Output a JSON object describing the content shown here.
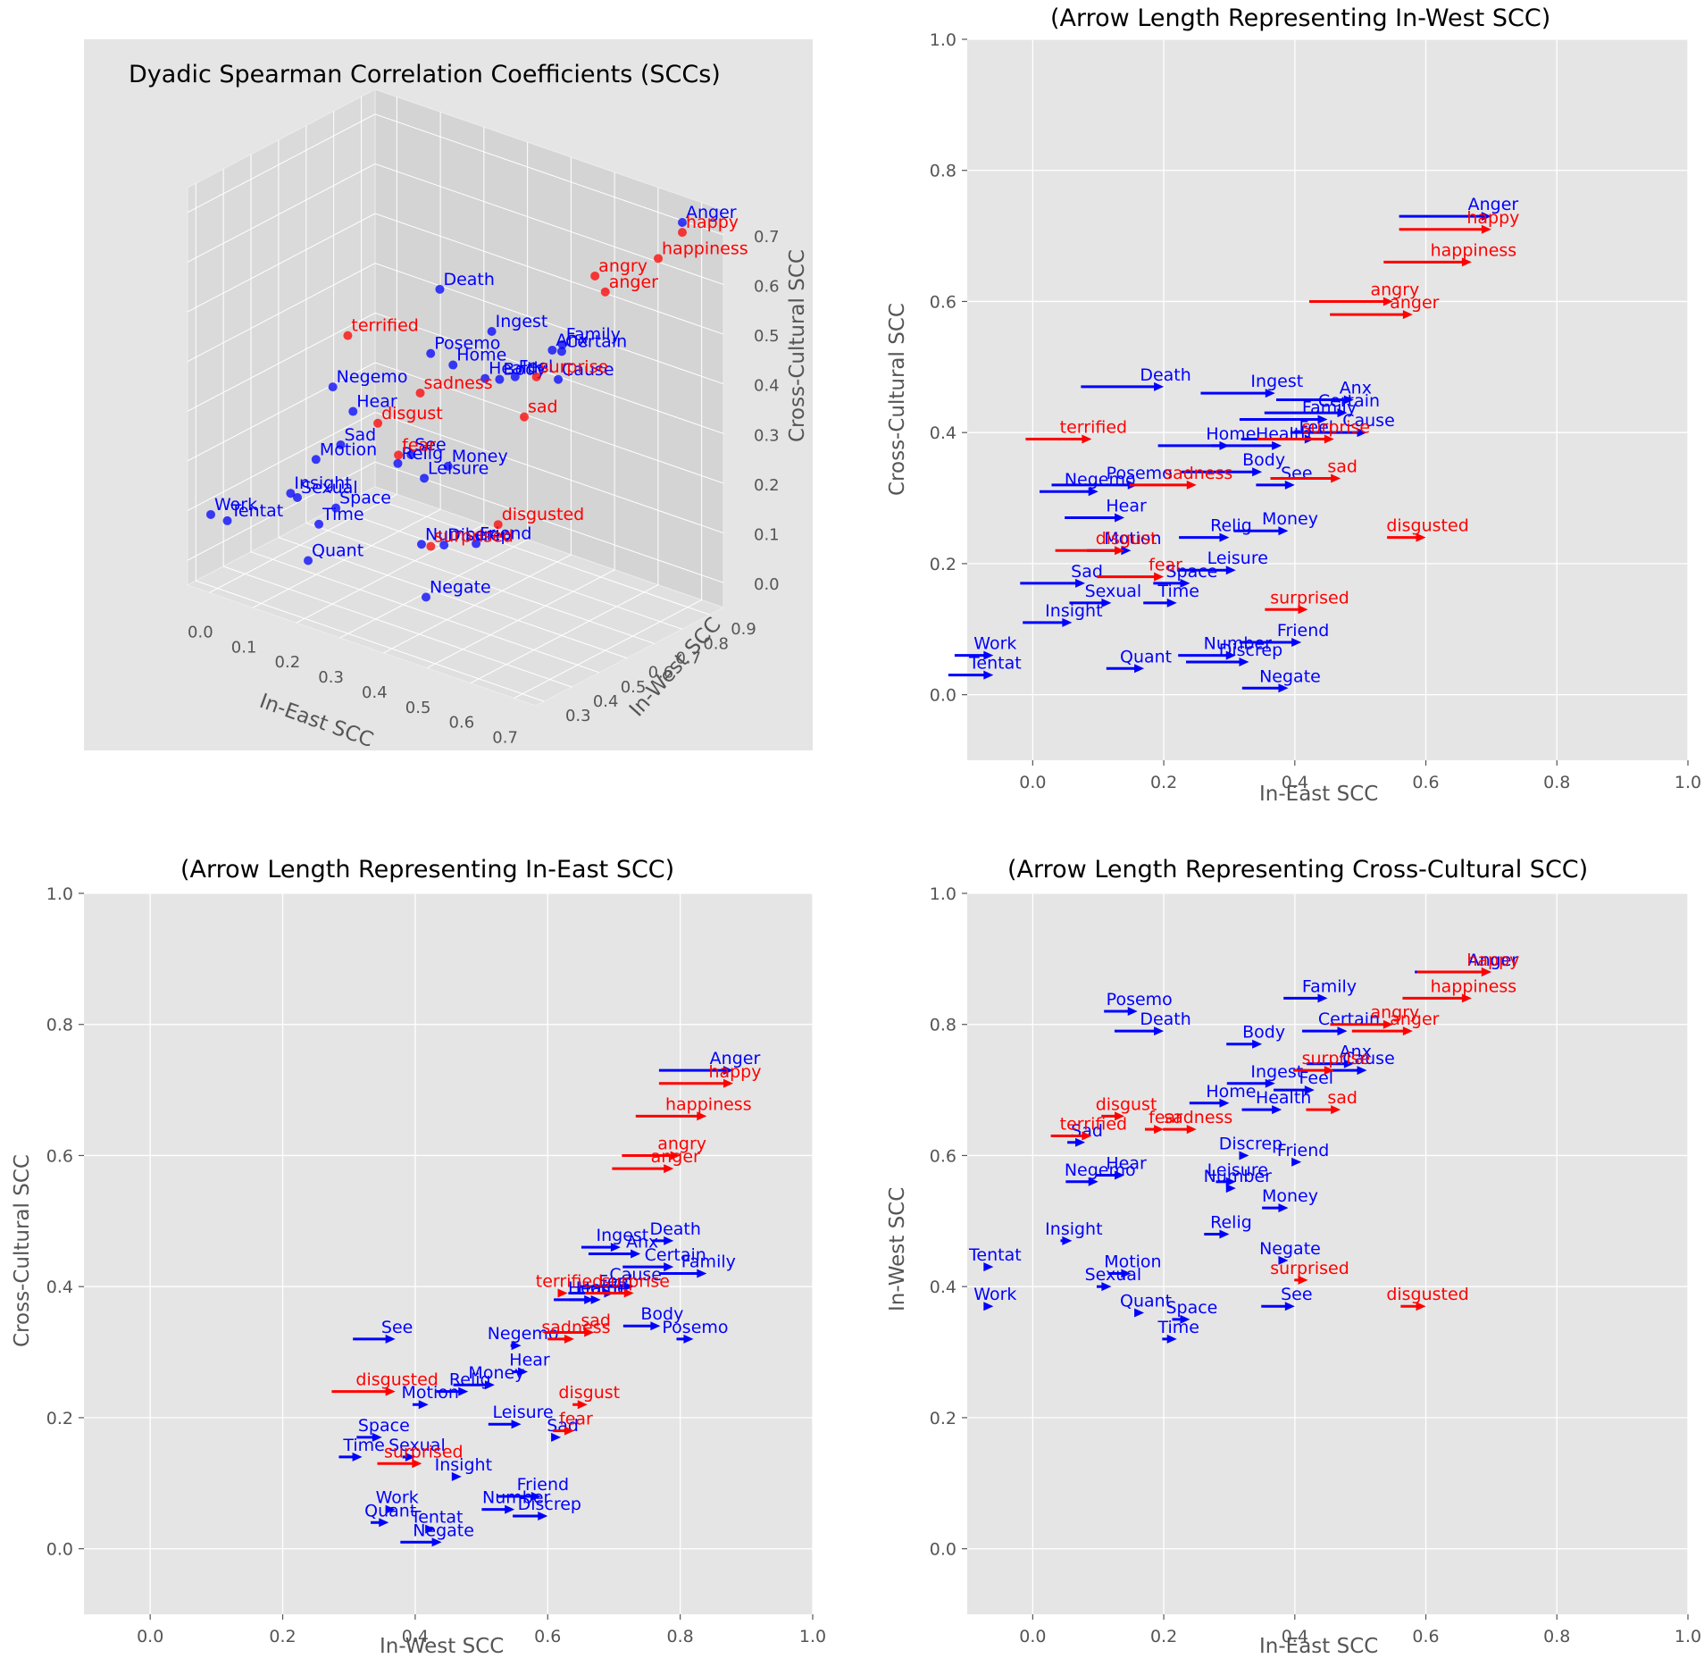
{
  "colors": {
    "emotion": "#ff0000",
    "liwc": "#0000ff",
    "panel_bg": "#e5e5e5",
    "grid": "#ffffff",
    "tick": "#555555"
  },
  "chart_data": [
    {
      "type": "scatter3d",
      "title": "Dyadic Spearman Correlation Coefficients (SCCs)",
      "xlabel": "In-East SCC",
      "ylabel": "In-West SCC",
      "zlabel": "Cross-Cultural SCC",
      "xlim": [
        -0.05,
        0.75
      ],
      "ylim": [
        0.27,
        0.95
      ],
      "zlim": [
        -0.05,
        0.75
      ],
      "xticks": [
        "0.0",
        "0.1",
        "0.2",
        "0.3",
        "0.4",
        "0.5",
        "0.6",
        "0.7"
      ],
      "yticks": [
        "0.3",
        "0.4",
        "0.5",
        "0.6",
        "0.7",
        "0.8",
        "0.9"
      ],
      "zticks": [
        "0.0",
        "0.1",
        "0.2",
        "0.3",
        "0.4",
        "0.5",
        "0.6",
        "0.7"
      ]
    },
    {
      "type": "quiver",
      "title": "(Arrow Length Representing In-West SCC)",
      "xlabel": "In-East SCC",
      "ylabel": "Cross-Cultural SCC",
      "xlim": [
        -0.1,
        1.0
      ],
      "ylim": [
        -0.1,
        1.0
      ],
      "xticks": [
        "0.0",
        "0.2",
        "0.4",
        "0.6",
        "0.8",
        "1.0"
      ],
      "yticks": [
        "0.0",
        "0.2",
        "0.4",
        "0.6",
        "0.8",
        "1.0"
      ]
    },
    {
      "type": "quiver",
      "title": "(Arrow Length Representing In-East SCC)",
      "xlabel": "In-West SCC",
      "ylabel": "Cross-Cultural SCC",
      "xlim": [
        -0.1,
        1.0
      ],
      "ylim": [
        -0.1,
        1.0
      ],
      "xticks": [
        "0.0",
        "0.2",
        "0.4",
        "0.6",
        "0.8",
        "1.0"
      ],
      "yticks": [
        "0.0",
        "0.2",
        "0.4",
        "0.6",
        "0.8",
        "1.0"
      ]
    },
    {
      "type": "quiver",
      "title": "(Arrow Length Representing Cross-Cultural SCC)",
      "xlabel": "In-East SCC",
      "ylabel": "In-West SCC",
      "xlim": [
        -0.1,
        1.0
      ],
      "ylim": [
        -0.1,
        1.0
      ],
      "xticks": [
        "0.0",
        "0.2",
        "0.4",
        "0.6",
        "0.8",
        "1.0"
      ],
      "yticks": [
        "0.0",
        "0.2",
        "0.4",
        "0.6",
        "0.8",
        "1.0"
      ]
    }
  ],
  "points": [
    [
      "Anger",
      "l",
      0.7,
      0.88,
      0.73
    ],
    [
      "Certain",
      "l",
      0.48,
      0.79,
      0.43
    ],
    [
      "Anx",
      "l",
      0.49,
      0.74,
      0.45
    ],
    [
      "Family",
      "l",
      0.45,
      0.84,
      0.42
    ],
    [
      "Death",
      "l",
      0.2,
      0.79,
      0.47
    ],
    [
      "Ingest",
      "l",
      0.37,
      0.71,
      0.46
    ],
    [
      "Cause",
      "l",
      0.51,
      0.73,
      0.4
    ],
    [
      "Feel",
      "l",
      0.43,
      0.7,
      0.39
    ],
    [
      "Health",
      "l",
      0.38,
      0.67,
      0.38
    ],
    [
      "Body",
      "l",
      0.35,
      0.77,
      0.34
    ],
    [
      "Home",
      "l",
      0.3,
      0.68,
      0.38
    ],
    [
      "Posemo",
      "l",
      0.16,
      0.82,
      0.32
    ],
    [
      "See",
      "l",
      0.4,
      0.37,
      0.32
    ],
    [
      "Negemo",
      "l",
      0.1,
      0.56,
      0.31
    ],
    [
      "Hear",
      "l",
      0.14,
      0.57,
      0.27
    ],
    [
      "Relig",
      "l",
      0.3,
      0.48,
      0.24
    ],
    [
      "Money",
      "l",
      0.39,
      0.52,
      0.25
    ],
    [
      "Motion",
      "l",
      0.15,
      0.42,
      0.22
    ],
    [
      "Leisure",
      "l",
      0.31,
      0.56,
      0.19
    ],
    [
      "Sad",
      "l",
      0.08,
      0.62,
      0.17
    ],
    [
      "Space",
      "l",
      0.24,
      0.35,
      0.17
    ],
    [
      "Sexual",
      "l",
      0.12,
      0.4,
      0.14
    ],
    [
      "Time",
      "l",
      0.22,
      0.32,
      0.14
    ],
    [
      "Insight",
      "l",
      0.06,
      0.47,
      0.11
    ],
    [
      "Friend",
      "l",
      0.41,
      0.59,
      0.08
    ],
    [
      "Number",
      "l",
      0.31,
      0.55,
      0.06
    ],
    [
      "Discrep",
      "l",
      0.33,
      0.6,
      0.05
    ],
    [
      "Quant",
      "l",
      0.17,
      0.36,
      0.04
    ],
    [
      "Work",
      "l",
      -0.06,
      0.37,
      0.06
    ],
    [
      "Tentat",
      "l",
      -0.06,
      0.43,
      0.03
    ],
    [
      "Negate",
      "l",
      0.39,
      0.44,
      0.01
    ],
    [
      "happy",
      "e",
      0.7,
      0.88,
      0.71
    ],
    [
      "happiness",
      "e",
      0.67,
      0.84,
      0.66
    ],
    [
      "angry",
      "e",
      0.55,
      0.8,
      0.6
    ],
    [
      "anger",
      "e",
      0.58,
      0.79,
      0.58
    ],
    [
      "terrified",
      "e",
      0.09,
      0.63,
      0.39
    ],
    [
      "surprise",
      "e",
      0.46,
      0.73,
      0.39
    ],
    [
      "sadness",
      "e",
      0.25,
      0.64,
      0.32
    ],
    [
      "sad",
      "e",
      0.47,
      0.67,
      0.33
    ],
    [
      "disgust",
      "e",
      0.14,
      0.66,
      0.22
    ],
    [
      "fear",
      "e",
      0.2,
      0.64,
      0.18
    ],
    [
      "disgusted",
      "e",
      0.6,
      0.37,
      0.24
    ],
    [
      "surprised",
      "e",
      0.42,
      0.41,
      0.13
    ]
  ]
}
